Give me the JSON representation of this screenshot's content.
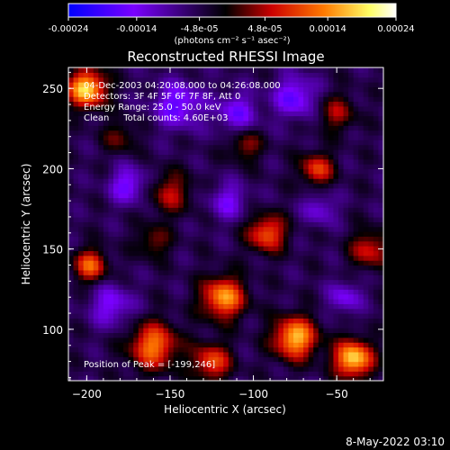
{
  "chart_data": {
    "type": "heatmap",
    "title": "Reconstructed RHESSI Image",
    "xlabel": "Heliocentric X (arcsec)",
    "ylabel": "Heliocentric Y (arcsec)",
    "xlim": [
      -211,
      -22
    ],
    "ylim": [
      68,
      263
    ],
    "xticks": [
      -200,
      -150,
      -100,
      -50
    ],
    "yticks": [
      100,
      150,
      200,
      250
    ],
    "colorbar": {
      "range": [
        -0.00024,
        0.00024
      ],
      "ticks": [
        "-0.00024",
        "-0.00014",
        "-4.8e-05",
        "4.8e-05",
        "0.00014",
        "0.00024"
      ],
      "tick_values": [
        -0.00024,
        -0.00014,
        -4.8e-05,
        4.8e-05,
        0.00014,
        0.00024
      ],
      "units": "(photons cm⁻² s⁻¹ asec⁻²)",
      "colors": [
        "#0000ff",
        "#7a00ff",
        "#000000",
        "#cc0000",
        "#ff7a00",
        "#ffff66",
        "#ffffff"
      ]
    },
    "annotations": [
      "04-Dec-2003 04:20:08.000 to 04:26:08.000",
      "Detectors: 3F 4F 5F 6F 7F 8F, Att 0",
      "Energy Range: 25.0 - 50.0 keV",
      "Clean     Total counts: 4.60E+03",
      "Position of Peak = [-199,246]"
    ],
    "peak": {
      "x": -199,
      "y": 246
    },
    "total_counts": 4600,
    "energy_range_kev": [
      25.0,
      50.0
    ],
    "sources": [
      {
        "x": -200,
        "y": 250,
        "value": 0.00024,
        "sigma": 8
      },
      {
        "x": -198,
        "y": 140,
        "value": 0.00016,
        "sigma": 7
      },
      {
        "x": -160,
        "y": 90,
        "value": 0.00018,
        "sigma": 10
      },
      {
        "x": -118,
        "y": 120,
        "value": 0.0002,
        "sigma": 9
      },
      {
        "x": -125,
        "y": 80,
        "value": 0.00015,
        "sigma": 8
      },
      {
        "x": -75,
        "y": 95,
        "value": 0.00022,
        "sigma": 9
      },
      {
        "x": -40,
        "y": 82,
        "value": 0.00024,
        "sigma": 8
      },
      {
        "x": -92,
        "y": 160,
        "value": 0.00016,
        "sigma": 8
      },
      {
        "x": -62,
        "y": 200,
        "value": 0.00014,
        "sigma": 7
      },
      {
        "x": -150,
        "y": 185,
        "value": 0.0001,
        "sigma": 9
      },
      {
        "x": -105,
        "y": 215,
        "value": 9e-05,
        "sigma": 7
      },
      {
        "x": -30,
        "y": 150,
        "value": 0.00012,
        "sigma": 8
      },
      {
        "x": -160,
        "y": 155,
        "value": 8e-05,
        "sigma": 7
      },
      {
        "x": -180,
        "y": 220,
        "value": 7e-05,
        "sigma": 7
      },
      {
        "x": -50,
        "y": 235,
        "value": 9e-05,
        "sigma": 8
      },
      {
        "x": -145,
        "y": 240,
        "value": -0.00012,
        "sigma": 10
      },
      {
        "x": -110,
        "y": 235,
        "value": -0.0001,
        "sigma": 9
      },
      {
        "x": -75,
        "y": 245,
        "value": -0.00012,
        "sigma": 9
      },
      {
        "x": -175,
        "y": 190,
        "value": -0.00011,
        "sigma": 8
      },
      {
        "x": -185,
        "y": 115,
        "value": -0.0001,
        "sigma": 9
      },
      {
        "x": -115,
        "y": 180,
        "value": -9e-05,
        "sigma": 8
      },
      {
        "x": -45,
        "y": 120,
        "value": -9e-05,
        "sigma": 7
      },
      {
        "x": -60,
        "y": 175,
        "value": -8e-05,
        "sigma": 7
      }
    ],
    "grid": false
  },
  "footer": {
    "timestamp": "8-May-2022 03:10"
  }
}
